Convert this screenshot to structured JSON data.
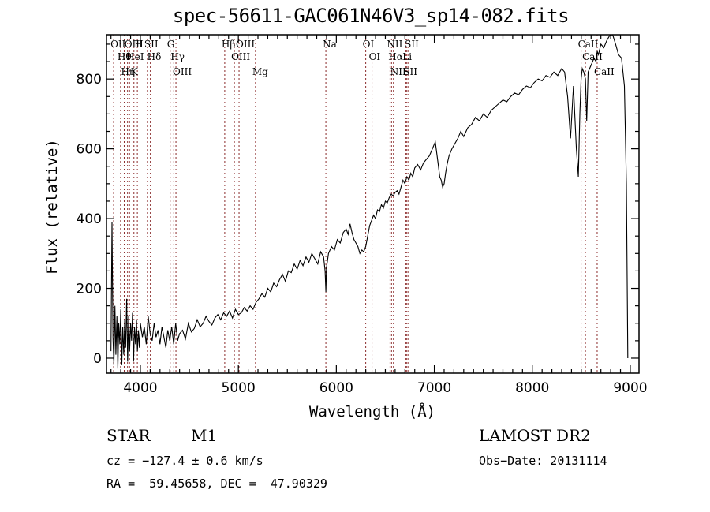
{
  "chart_data": {
    "type": "line",
    "title": "spec-56611-GAC061N46V3_sp14-082.fits",
    "xlabel": "Wavelength (Å)",
    "ylabel": "Flux (relative)",
    "xlim": [
      3654,
      9089
    ],
    "ylim": [
      -43,
      927
    ],
    "xticks": [
      4000,
      5000,
      6000,
      7000,
      8000,
      9000
    ],
    "xtick_labels": [
      "4000",
      "5000",
      "6000",
      "7000",
      "8000",
      "9000"
    ],
    "yticks": [
      0,
      200,
      400,
      600,
      800
    ],
    "ytick_labels": [
      "0",
      "200",
      "400",
      "600",
      "800"
    ],
    "grid": false,
    "line_color": "#000000",
    "marker_color": "#8b2b2b",
    "spectrum": {
      "wavelength": [
        3700,
        3710,
        3720,
        3730,
        3740,
        3750,
        3760,
        3770,
        3780,
        3790,
        3800,
        3810,
        3820,
        3830,
        3840,
        3850,
        3860,
        3870,
        3880,
        3890,
        3900,
        3910,
        3920,
        3930,
        3940,
        3950,
        3960,
        3970,
        3980,
        3990,
        4000,
        4020,
        4040,
        4060,
        4080,
        4100,
        4120,
        4140,
        4160,
        4180,
        4200,
        4220,
        4240,
        4260,
        4280,
        4300,
        4320,
        4340,
        4360,
        4380,
        4400,
        4430,
        4460,
        4490,
        4520,
        4550,
        4580,
        4610,
        4640,
        4670,
        4700,
        4730,
        4760,
        4790,
        4820,
        4850,
        4880,
        4910,
        4940,
        4970,
        5000,
        5030,
        5060,
        5090,
        5120,
        5150,
        5180,
        5210,
        5240,
        5270,
        5300,
        5330,
        5360,
        5390,
        5420,
        5450,
        5480,
        5510,
        5540,
        5570,
        5600,
        5630,
        5660,
        5690,
        5720,
        5750,
        5780,
        5810,
        5840,
        5870,
        5885,
        5893,
        5900,
        5920,
        5950,
        5980,
        6010,
        6040,
        6070,
        6100,
        6120,
        6140,
        6160,
        6180,
        6200,
        6220,
        6240,
        6260,
        6280,
        6300,
        6320,
        6340,
        6360,
        6380,
        6400,
        6420,
        6440,
        6460,
        6480,
        6500,
        6520,
        6540,
        6560,
        6580,
        6600,
        6620,
        6640,
        6660,
        6680,
        6700,
        6720,
        6740,
        6760,
        6780,
        6800,
        6830,
        6860,
        6890,
        6920,
        6950,
        6980,
        7010,
        7040,
        7055,
        7070,
        7085,
        7100,
        7115,
        7130,
        7150,
        7180,
        7210,
        7240,
        7270,
        7300,
        7340,
        7380,
        7420,
        7460,
        7500,
        7540,
        7580,
        7620,
        7660,
        7700,
        7740,
        7780,
        7820,
        7860,
        7900,
        7940,
        7980,
        8020,
        8060,
        8100,
        8140,
        8180,
        8220,
        8260,
        8300,
        8330,
        8360,
        8390,
        8420,
        8450,
        8470,
        8485,
        8498,
        8510,
        8525,
        8542,
        8555,
        8570,
        8600,
        8630,
        8650,
        8662,
        8675,
        8700,
        8730,
        8760,
        8790,
        8820,
        8850,
        8880,
        8910,
        8940,
        8960,
        8975,
        8985,
        8990,
        8995,
        9000,
        9005
      ],
      "flux": [
        20,
        390,
        60,
        -20,
        150,
        10,
        120,
        -30,
        100,
        40,
        140,
        -20,
        90,
        10,
        110,
        30,
        170,
        -10,
        120,
        20,
        100,
        50,
        130,
        -10,
        90,
        40,
        110,
        20,
        80,
        30,
        100,
        60,
        90,
        40,
        120,
        70,
        50,
        100,
        60,
        80,
        40,
        90,
        60,
        30,
        80,
        50,
        90,
        40,
        100,
        50,
        70,
        80,
        55,
        100,
        75,
        85,
        110,
        90,
        100,
        120,
        105,
        95,
        115,
        125,
        110,
        130,
        120,
        135,
        115,
        140,
        125,
        130,
        145,
        135,
        150,
        140,
        160,
        170,
        185,
        175,
        200,
        190,
        215,
        205,
        225,
        240,
        220,
        250,
        245,
        270,
        255,
        280,
        265,
        290,
        275,
        300,
        285,
        270,
        305,
        290,
        250,
        190,
        260,
        300,
        320,
        310,
        340,
        330,
        360,
        370,
        355,
        385,
        360,
        340,
        330,
        320,
        300,
        310,
        305,
        320,
        350,
        380,
        395,
        410,
        400,
        425,
        420,
        440,
        430,
        450,
        445,
        460,
        470,
        465,
        475,
        480,
        470,
        490,
        510,
        500,
        520,
        510,
        530,
        520,
        545,
        555,
        540,
        560,
        570,
        580,
        600,
        620,
        555,
        520,
        510,
        490,
        500,
        530,
        555,
        580,
        600,
        615,
        630,
        650,
        635,
        660,
        670,
        690,
        680,
        700,
        690,
        710,
        720,
        730,
        740,
        735,
        750,
        760,
        755,
        770,
        780,
        775,
        790,
        800,
        795,
        810,
        805,
        820,
        810,
        830,
        820,
        750,
        630,
        780,
        600,
        520,
        700,
        800,
        830,
        820,
        800,
        680,
        820,
        840,
        860,
        850,
        880,
        870,
        900,
        890,
        910,
        925,
        930,
        900,
        870,
        860,
        780,
        500,
        0
      ]
    },
    "line_markers": [
      {
        "label": "OII",
        "wavelength": 3727
      },
      {
        "label": "Hθ",
        "wavelength": 3798
      },
      {
        "label": "Hη",
        "wavelength": 3835
      },
      {
        "label": "OIII",
        "wavelength": 3869
      },
      {
        "label": "HeI",
        "wavelength": 3889
      },
      {
        "label": "K",
        "wavelength": 3934
      },
      {
        "label": "H",
        "wavelength": 3969
      },
      {
        "label": "SII",
        "wavelength": 4072
      },
      {
        "label": "Hδ",
        "wavelength": 4102
      },
      {
        "label": "G",
        "wavelength": 4304
      },
      {
        "label": "Hγ",
        "wavelength": 4341
      },
      {
        "label": "OIII",
        "wavelength": 4363
      },
      {
        "label": "Hβ",
        "wavelength": 4861
      },
      {
        "label": "OIII",
        "wavelength": 4959
      },
      {
        "label": "OIII",
        "wavelength": 5007
      },
      {
        "label": "Mg",
        "wavelength": 5175
      },
      {
        "label": "Na",
        "wavelength": 5893
      },
      {
        "label": "OI",
        "wavelength": 6300
      },
      {
        "label": "OI",
        "wavelength": 6364
      },
      {
        "label": "NII",
        "wavelength": 6548
      },
      {
        "label": "Hα",
        "wavelength": 6563
      },
      {
        "label": "NII",
        "wavelength": 6583
      },
      {
        "label": "Li",
        "wavelength": 6708
      },
      {
        "label": "SII",
        "wavelength": 6716
      },
      {
        "label": "SII",
        "wavelength": 6731
      },
      {
        "label": "CaII",
        "wavelength": 8498
      },
      {
        "label": "CaII",
        "wavelength": 8542
      },
      {
        "label": "CaII",
        "wavelength": 8662
      }
    ]
  },
  "info": {
    "object_class": "STAR",
    "subclass": "M1",
    "redshift": "cz = −127.4 ± 0.6 km/s",
    "coords": "RA =  59.45658, DEC =  47.90329",
    "survey": "LAMOST DR2",
    "obs_date": "Obs−Date: 20131114"
  }
}
